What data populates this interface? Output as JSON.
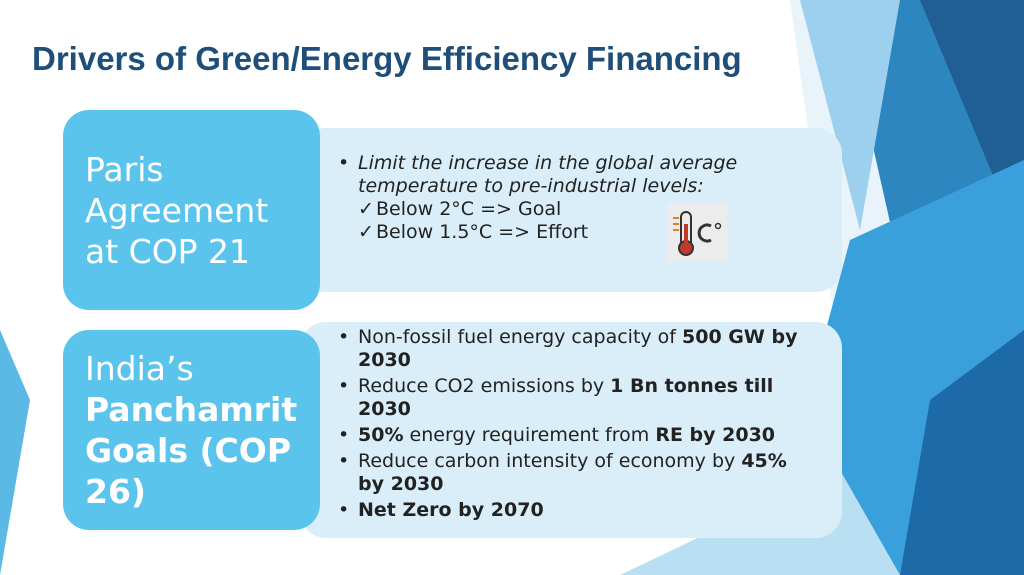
{
  "title": "Drivers of Green/Energy Efficiency Financing",
  "blocks": [
    {
      "label": [
        {
          "text": "Paris Agreement at COP 21",
          "bold": false
        }
      ],
      "bullets": [
        {
          "runs": [
            {
              "text": "Limit the increase in the global average temperature to pre-industrial levels:",
              "bold": false,
              "italic": true
            }
          ],
          "checks": [
            "Below 2°C => Goal",
            "Below  1.5°C => Effort"
          ]
        }
      ]
    },
    {
      "label": [
        {
          "text": "India’s ",
          "bold": false
        },
        {
          "text": "Panchamrit Goals (COP 26)",
          "bold": true
        }
      ],
      "bullets": [
        {
          "runs": [
            {
              "text": "Non-fossil fuel energy capacity of ",
              "bold": false
            },
            {
              "text": "500 GW by 2030",
              "bold": true
            }
          ]
        },
        {
          "runs": [
            {
              "text": "Reduce CO2 emissions by ",
              "bold": false
            },
            {
              "text": "1 Bn tonnes till 2030",
              "bold": true
            }
          ]
        },
        {
          "runs": [
            {
              "text": "50%",
              "bold": true
            },
            {
              "text": " energy requirement from ",
              "bold": false
            },
            {
              "text": "RE by 2030",
              "bold": true
            }
          ]
        },
        {
          "runs": [
            {
              "text": "Reduce carbon intensity of economy by ",
              "bold": false
            },
            {
              "text": "45% by 2030",
              "bold": true
            }
          ]
        },
        {
          "runs": [
            {
              "text": "Net Zero by 2070",
              "bold": true
            }
          ]
        }
      ]
    }
  ]
}
